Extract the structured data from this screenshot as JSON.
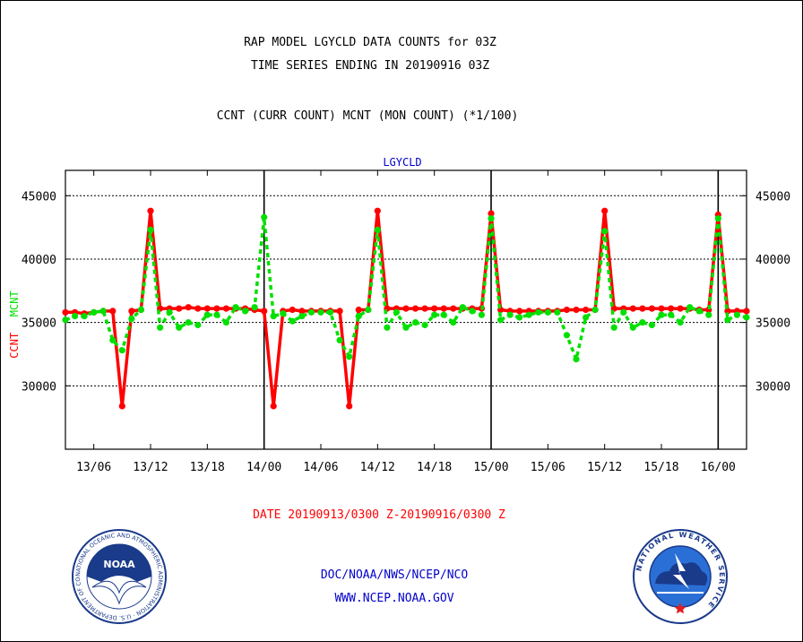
{
  "header": {
    "line1": "RAP MODEL LGYCLD DATA COUNTS for 03Z",
    "line2": "TIME SERIES ENDING IN 20190916 03Z",
    "line3": "CCNT (CURR COUNT) MCNT (MON COUNT) (*1/100)"
  },
  "chart_data": {
    "type": "line",
    "title": "LGYCLD",
    "ylabel_ccnt": "CCNT",
    "ylabel_mcnt": "MCNT",
    "xlabel": "DATE 20190913/0300 Z-20190916/0300 Z",
    "ylim": [
      25000,
      47000
    ],
    "y_ticks": [
      "30000",
      "35000",
      "40000",
      "45000"
    ],
    "x_ticks": [
      {
        "label": "13/06",
        "hour": 3
      },
      {
        "label": "13/12",
        "hour": 9
      },
      {
        "label": "13/18",
        "hour": 15
      },
      {
        "label": "14/00",
        "hour": 21
      },
      {
        "label": "14/06",
        "hour": 27
      },
      {
        "label": "14/12",
        "hour": 33
      },
      {
        "label": "14/18",
        "hour": 39
      },
      {
        "label": "15/00",
        "hour": 45
      },
      {
        "label": "15/06",
        "hour": 51
      },
      {
        "label": "15/12",
        "hour": 57
      },
      {
        "label": "15/18",
        "hour": 63
      },
      {
        "label": "16/00",
        "hour": 69
      }
    ],
    "x_range_hours": [
      0,
      72
    ],
    "grid": "horizontal dashed",
    "series": [
      {
        "name": "CCNT",
        "color": "#ff0000",
        "x_hours": [
          0,
          1,
          2,
          3,
          4,
          5,
          6,
          7,
          8,
          9,
          10,
          11,
          12,
          13,
          14,
          15,
          16,
          17,
          18,
          19,
          20,
          21,
          22,
          23,
          24,
          25,
          26,
          27,
          28,
          29,
          30,
          31,
          32,
          33,
          34,
          35,
          36,
          37,
          38,
          39,
          40,
          41,
          42,
          43,
          44,
          45,
          46,
          47,
          48,
          49,
          50,
          51,
          52,
          53,
          54,
          55,
          56,
          57,
          58,
          59,
          60,
          61,
          62,
          63,
          64,
          65,
          66,
          67,
          68,
          69,
          70,
          71,
          72
        ],
        "values": [
          35800,
          35800,
          35700,
          35800,
          35900,
          35900,
          28400,
          35900,
          36000,
          43800,
          36100,
          36100,
          36100,
          36200,
          36100,
          36100,
          36100,
          36100,
          36100,
          36100,
          36000,
          35900,
          28400,
          35900,
          36000,
          35900,
          35900,
          35900,
          35900,
          35900,
          28400,
          36000,
          36000,
          43800,
          36100,
          36100,
          36100,
          36100,
          36100,
          36100,
          36100,
          36100,
          36100,
          36100,
          36100,
          43600,
          36000,
          35900,
          35900,
          35900,
          35900,
          35900,
          35900,
          36000,
          36000,
          36000,
          36000,
          43800,
          36100,
          36100,
          36100,
          36100,
          36100,
          36100,
          36100,
          36100,
          36100,
          36000,
          36000,
          43500,
          35900,
          35900,
          35900
        ]
      },
      {
        "name": "MCNT",
        "color": "#00e000",
        "x_hours": [
          0,
          1,
          2,
          3,
          4,
          5,
          6,
          7,
          8,
          9,
          10,
          11,
          12,
          13,
          14,
          15,
          16,
          17,
          18,
          19,
          20,
          21,
          22,
          23,
          24,
          25,
          26,
          27,
          28,
          29,
          30,
          31,
          32,
          33,
          34,
          35,
          36,
          37,
          38,
          39,
          40,
          41,
          42,
          43,
          44,
          45,
          46,
          47,
          48,
          49,
          50,
          51,
          52,
          53,
          54,
          55,
          56,
          57,
          58,
          59,
          60,
          61,
          62,
          63,
          64,
          65,
          66,
          67,
          68,
          69,
          70,
          71,
          72
        ],
        "values": [
          35200,
          35500,
          35500,
          35800,
          35900,
          33600,
          32800,
          35300,
          36000,
          42300,
          34600,
          35800,
          34600,
          35000,
          34800,
          35600,
          35600,
          35000,
          36200,
          35900,
          36200,
          43300,
          35500,
          35700,
          35100,
          35500,
          35800,
          35800,
          35800,
          33600,
          32300,
          35500,
          36000,
          42300,
          34600,
          35800,
          34600,
          35000,
          34800,
          35600,
          35600,
          35000,
          36200,
          35900,
          35600,
          43200,
          35200,
          35600,
          35400,
          35600,
          35800,
          35800,
          35800,
          34000,
          32100,
          35400,
          36000,
          42200,
          34600,
          35800,
          34600,
          35000,
          34800,
          35600,
          35600,
          35000,
          36200,
          35900,
          35600,
          43200,
          35200,
          35600,
          35400
        ]
      }
    ]
  },
  "footer": {
    "agency_line1": "DOC/NOAA/NWS/NCEP/NCO",
    "agency_line2": "WWW.NCEP.NOAA.GOV",
    "noaa_logo_text": "NOAA",
    "noaa_ring_text": "NATIONAL OCEANIC AND ATMOSPHERIC ADMINISTRATION · U.S. DEPARTMENT OF COMMERCE ·",
    "nws_ring_text": "NATIONAL WEATHER SERVICE"
  }
}
